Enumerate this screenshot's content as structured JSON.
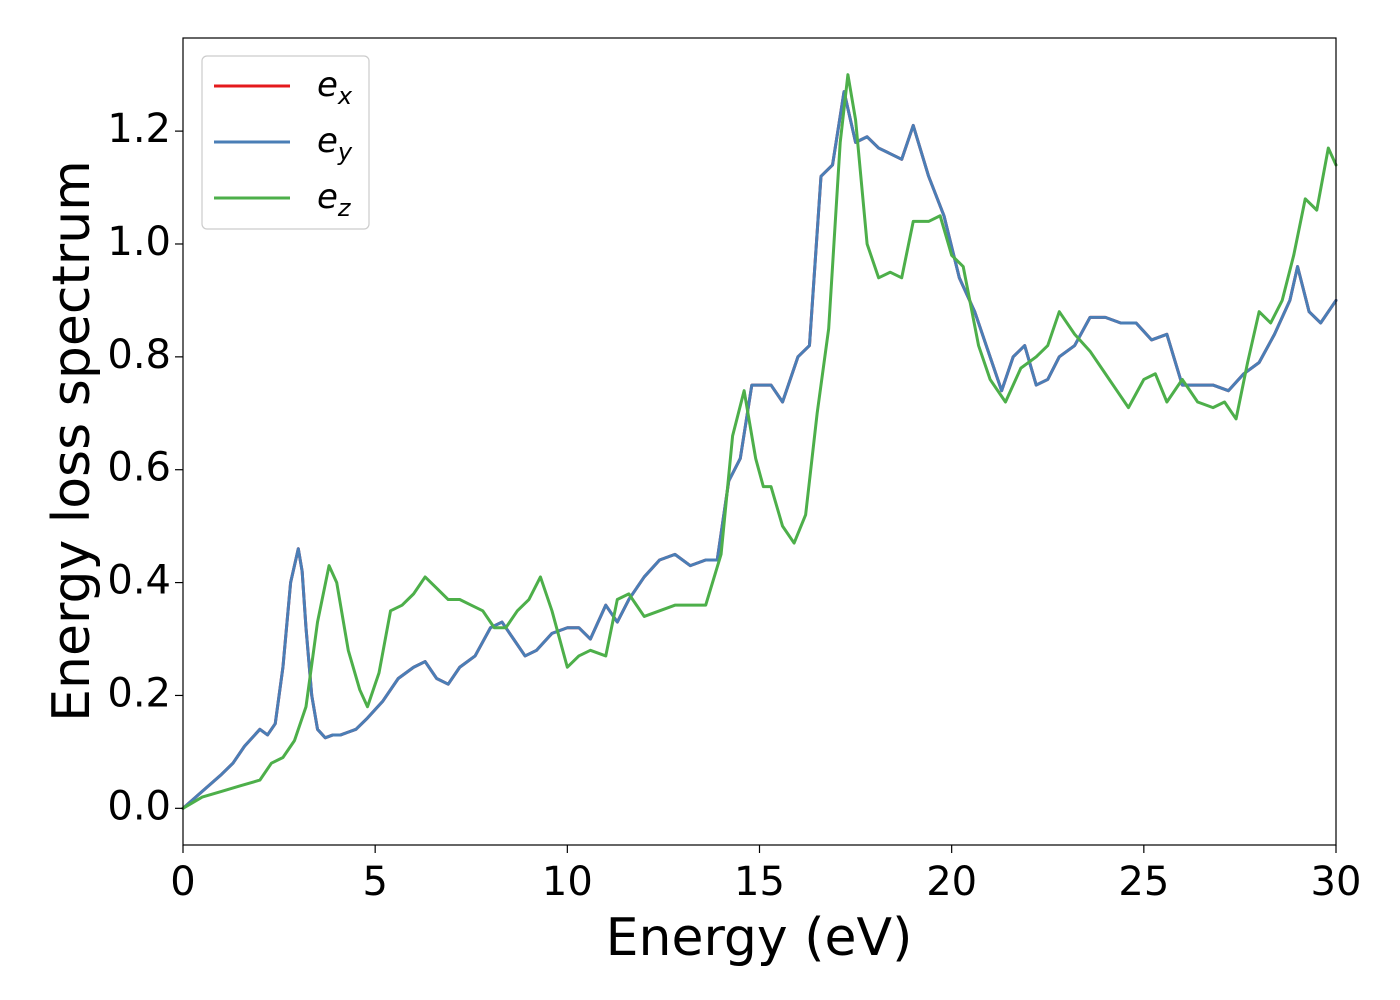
{
  "chart_data": {
    "type": "line",
    "xlabel": "Energy (eV)",
    "ylabel": "Energy loss spectrum",
    "xlim": [
      0,
      30
    ],
    "ylim": [
      -0.065,
      1.365
    ],
    "xticks": [
      0,
      5,
      10,
      15,
      20,
      25,
      30
    ],
    "xtick_labels": [
      "0",
      "5",
      "10",
      "15",
      "20",
      "25",
      "30"
    ],
    "yticks": [
      0.0,
      0.2,
      0.4,
      0.6,
      0.8,
      1.0,
      1.2
    ],
    "ytick_labels": [
      "0.0",
      "0.2",
      "0.4",
      "0.6",
      "0.8",
      "1.0",
      "1.2"
    ],
    "grid": false,
    "legend_position": "top-left",
    "series": [
      {
        "name": "e_x",
        "label_base": "e",
        "label_sub": "x",
        "color": "#e41a1c",
        "x": [
          0,
          0.5,
          1,
          1.3,
          1.6,
          2,
          2.2,
          2.4,
          2.6,
          2.8,
          3.0,
          3.1,
          3.2,
          3.35,
          3.5,
          3.7,
          3.9,
          4.1,
          4.3,
          4.5,
          4.8,
          5.2,
          5.6,
          6.0,
          6.3,
          6.6,
          6.9,
          7.2,
          7.6,
          8.0,
          8.3,
          8.6,
          8.9,
          9.2,
          9.6,
          10.0,
          10.3,
          10.6,
          11.0,
          11.3,
          11.6,
          12.0,
          12.4,
          12.8,
          13.2,
          13.6,
          13.9,
          14.2,
          14.5,
          14.8,
          15.0,
          15.3,
          15.6,
          16.0,
          16.3,
          16.6,
          16.9,
          17.2,
          17.5,
          17.8,
          18.1,
          18.4,
          18.7,
          19.0,
          19.4,
          19.8,
          20.2,
          20.6,
          21.0,
          21.3,
          21.6,
          21.9,
          22.2,
          22.5,
          22.8,
          23.2,
          23.6,
          24.0,
          24.4,
          24.8,
          25.2,
          25.6,
          26.0,
          26.4,
          26.8,
          27.2,
          27.6,
          28.0,
          28.4,
          28.8,
          29.0,
          29.3,
          29.6,
          30.0
        ],
        "values": [
          0.0,
          0.03,
          0.06,
          0.08,
          0.11,
          0.14,
          0.13,
          0.15,
          0.25,
          0.4,
          0.46,
          0.42,
          0.32,
          0.2,
          0.14,
          0.125,
          0.13,
          0.13,
          0.135,
          0.14,
          0.16,
          0.19,
          0.23,
          0.25,
          0.26,
          0.23,
          0.22,
          0.25,
          0.27,
          0.32,
          0.33,
          0.3,
          0.27,
          0.28,
          0.31,
          0.32,
          0.32,
          0.3,
          0.36,
          0.33,
          0.37,
          0.41,
          0.44,
          0.45,
          0.43,
          0.44,
          0.44,
          0.58,
          0.62,
          0.75,
          0.75,
          0.75,
          0.72,
          0.8,
          0.82,
          1.12,
          1.14,
          1.27,
          1.18,
          1.19,
          1.17,
          1.16,
          1.15,
          1.21,
          1.12,
          1.05,
          0.94,
          0.88,
          0.8,
          0.74,
          0.8,
          0.82,
          0.75,
          0.76,
          0.8,
          0.82,
          0.87,
          0.87,
          0.86,
          0.86,
          0.83,
          0.84,
          0.75,
          0.75,
          0.75,
          0.74,
          0.77,
          0.79,
          0.84,
          0.9,
          0.96,
          0.88,
          0.86,
          0.9
        ]
      },
      {
        "name": "e_y",
        "label_base": "e",
        "label_sub": "y",
        "color": "#4a7eb6",
        "x": [
          0,
          0.5,
          1,
          1.3,
          1.6,
          2,
          2.2,
          2.4,
          2.6,
          2.8,
          3.0,
          3.1,
          3.2,
          3.35,
          3.5,
          3.7,
          3.9,
          4.1,
          4.3,
          4.5,
          4.8,
          5.2,
          5.6,
          6.0,
          6.3,
          6.6,
          6.9,
          7.2,
          7.6,
          8.0,
          8.3,
          8.6,
          8.9,
          9.2,
          9.6,
          10.0,
          10.3,
          10.6,
          11.0,
          11.3,
          11.6,
          12.0,
          12.4,
          12.8,
          13.2,
          13.6,
          13.9,
          14.2,
          14.5,
          14.8,
          15.0,
          15.3,
          15.6,
          16.0,
          16.3,
          16.6,
          16.9,
          17.2,
          17.5,
          17.8,
          18.1,
          18.4,
          18.7,
          19.0,
          19.4,
          19.8,
          20.2,
          20.6,
          21.0,
          21.3,
          21.6,
          21.9,
          22.2,
          22.5,
          22.8,
          23.2,
          23.6,
          24.0,
          24.4,
          24.8,
          25.2,
          25.6,
          26.0,
          26.4,
          26.8,
          27.2,
          27.6,
          28.0,
          28.4,
          28.8,
          29.0,
          29.3,
          29.6,
          30.0
        ],
        "values": [
          0.0,
          0.03,
          0.06,
          0.08,
          0.11,
          0.14,
          0.13,
          0.15,
          0.25,
          0.4,
          0.46,
          0.42,
          0.32,
          0.2,
          0.14,
          0.125,
          0.13,
          0.13,
          0.135,
          0.14,
          0.16,
          0.19,
          0.23,
          0.25,
          0.26,
          0.23,
          0.22,
          0.25,
          0.27,
          0.32,
          0.33,
          0.3,
          0.27,
          0.28,
          0.31,
          0.32,
          0.32,
          0.3,
          0.36,
          0.33,
          0.37,
          0.41,
          0.44,
          0.45,
          0.43,
          0.44,
          0.44,
          0.58,
          0.62,
          0.75,
          0.75,
          0.75,
          0.72,
          0.8,
          0.82,
          1.12,
          1.14,
          1.27,
          1.18,
          1.19,
          1.17,
          1.16,
          1.15,
          1.21,
          1.12,
          1.05,
          0.94,
          0.88,
          0.8,
          0.74,
          0.8,
          0.82,
          0.75,
          0.76,
          0.8,
          0.82,
          0.87,
          0.87,
          0.86,
          0.86,
          0.83,
          0.84,
          0.75,
          0.75,
          0.75,
          0.74,
          0.77,
          0.79,
          0.84,
          0.9,
          0.96,
          0.88,
          0.86,
          0.9
        ]
      },
      {
        "name": "e_z",
        "label_base": "e",
        "label_sub": "z",
        "color": "#4daf4a",
        "x": [
          0,
          0.5,
          1,
          1.5,
          2,
          2.3,
          2.6,
          2.9,
          3.2,
          3.5,
          3.8,
          4.0,
          4.3,
          4.6,
          4.8,
          5.1,
          5.4,
          5.7,
          6.0,
          6.3,
          6.6,
          6.9,
          7.2,
          7.5,
          7.8,
          8.1,
          8.4,
          8.7,
          9.0,
          9.3,
          9.6,
          10.0,
          10.3,
          10.6,
          11.0,
          11.3,
          11.6,
          12.0,
          12.4,
          12.8,
          13.2,
          13.6,
          14.0,
          14.3,
          14.6,
          14.9,
          15.1,
          15.3,
          15.6,
          15.9,
          16.2,
          16.5,
          16.8,
          17.1,
          17.3,
          17.5,
          17.8,
          18.1,
          18.4,
          18.7,
          19.0,
          19.4,
          19.7,
          20.0,
          20.3,
          20.7,
          21.0,
          21.4,
          21.8,
          22.2,
          22.5,
          22.8,
          23.2,
          23.6,
          24.0,
          24.3,
          24.6,
          25.0,
          25.3,
          25.6,
          26.0,
          26.4,
          26.8,
          27.1,
          27.4,
          27.7,
          28.0,
          28.3,
          28.6,
          28.9,
          29.2,
          29.5,
          29.8,
          30.0
        ],
        "values": [
          0.0,
          0.02,
          0.03,
          0.04,
          0.05,
          0.08,
          0.09,
          0.12,
          0.18,
          0.33,
          0.43,
          0.4,
          0.28,
          0.21,
          0.18,
          0.24,
          0.35,
          0.36,
          0.38,
          0.41,
          0.39,
          0.37,
          0.37,
          0.36,
          0.35,
          0.32,
          0.32,
          0.35,
          0.37,
          0.41,
          0.35,
          0.25,
          0.27,
          0.28,
          0.27,
          0.37,
          0.38,
          0.34,
          0.35,
          0.36,
          0.36,
          0.36,
          0.45,
          0.66,
          0.74,
          0.62,
          0.57,
          0.57,
          0.5,
          0.47,
          0.52,
          0.7,
          0.85,
          1.18,
          1.3,
          1.22,
          1.0,
          0.94,
          0.95,
          0.94,
          1.04,
          1.04,
          1.05,
          0.98,
          0.96,
          0.82,
          0.76,
          0.72,
          0.78,
          0.8,
          0.82,
          0.88,
          0.84,
          0.81,
          0.77,
          0.74,
          0.71,
          0.76,
          0.77,
          0.72,
          0.76,
          0.72,
          0.71,
          0.72,
          0.69,
          0.79,
          0.88,
          0.86,
          0.9,
          0.98,
          1.08,
          1.06,
          1.17,
          1.14
        ]
      }
    ]
  }
}
